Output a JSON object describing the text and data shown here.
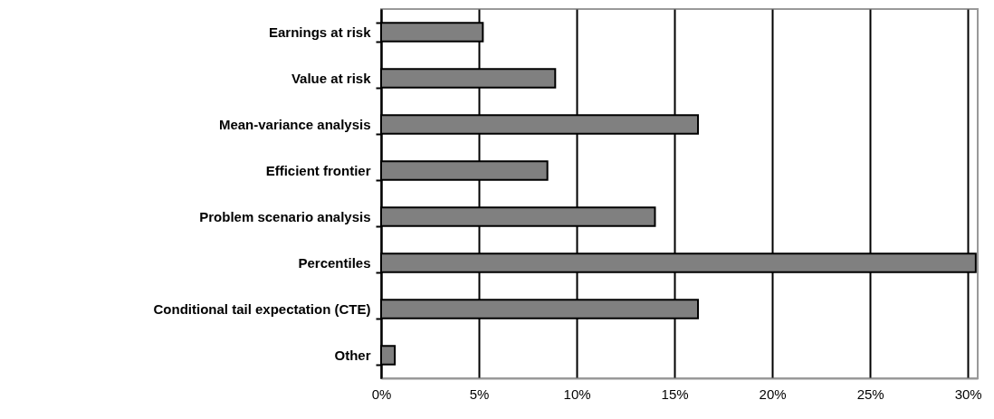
{
  "chart_data": {
    "type": "bar",
    "orientation": "horizontal",
    "categories": [
      "Earnings at risk",
      "Value at risk",
      "Mean-variance analysis",
      "Efficient frontier",
      "Problem scenario analysis",
      "Percentiles",
      "Conditional tail expectation (CTE)",
      "Other"
    ],
    "values": [
      5.2,
      8.9,
      16.2,
      8.5,
      14.0,
      30.4,
      16.2,
      0.7
    ],
    "color": "#808080",
    "xlim": [
      0,
      30.5
    ],
    "xticks": [
      {
        "value": 0,
        "label": "0%"
      },
      {
        "value": 5,
        "label": "5%"
      },
      {
        "value": 10,
        "label": "10%"
      },
      {
        "value": 15,
        "label": "15%"
      },
      {
        "value": 20,
        "label": "20%"
      },
      {
        "value": 25,
        "label": "25%"
      },
      {
        "value": 30,
        "label": "30%"
      }
    ],
    "grid": "x"
  }
}
